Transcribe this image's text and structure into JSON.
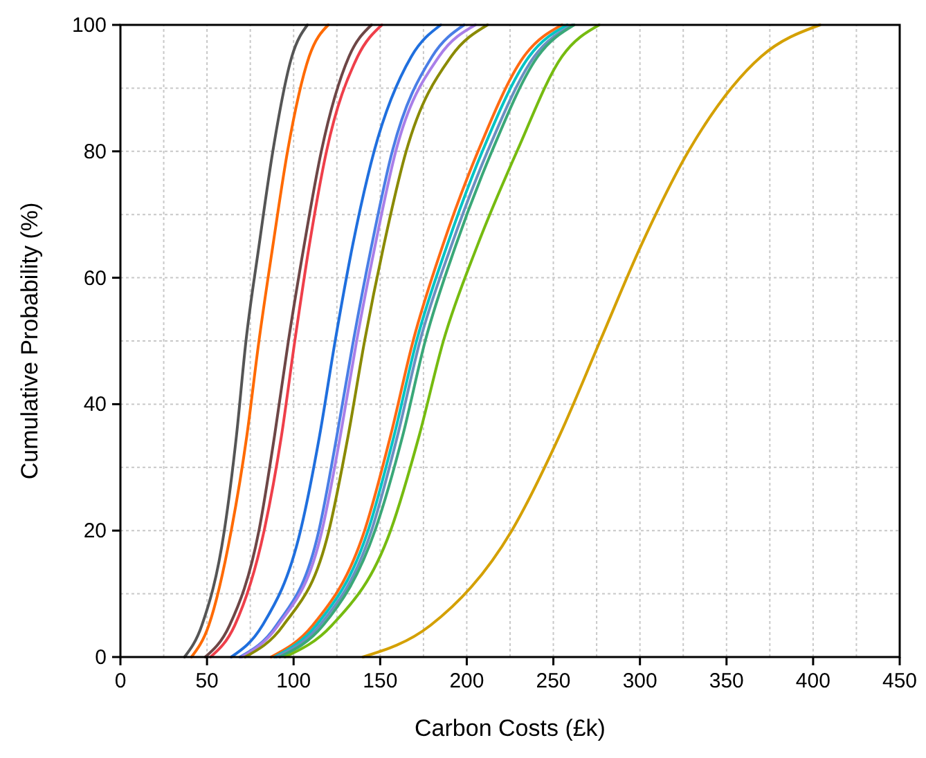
{
  "chart_data": {
    "type": "line",
    "xlabel": "Carbon Costs (£k)",
    "ylabel": "Cumulative Probability (%)",
    "xlim": [
      0,
      450
    ],
    "ylim": [
      0,
      100
    ],
    "xticks": [
      0,
      {
        "value": 25,
        "label": null
      },
      50,
      {
        "value": 75,
        "label": null
      },
      100,
      {
        "value": 125,
        "label": null
      },
      150,
      {
        "value": 175,
        "label": null
      },
      200,
      {
        "value": 225,
        "label": null
      },
      250,
      {
        "value": 275,
        "label": null
      },
      300,
      {
        "value": 325,
        "label": null
      },
      350,
      {
        "value": 375,
        "label": null
      },
      400,
      {
        "value": 425,
        "label": null
      },
      450
    ],
    "yticks": [
      0,
      {
        "value": 10,
        "label": null
      },
      20,
      {
        "value": 30,
        "label": null
      },
      40,
      {
        "value": 50,
        "label": null
      },
      60,
      {
        "value": 70,
        "label": null
      },
      80,
      {
        "value": 90,
        "label": null
      },
      100
    ],
    "grid": true,
    "marker": "none",
    "line_style": "solid",
    "series": [
      {
        "color": "#555555",
        "x": [
          37,
          47,
          60,
          67,
          72.5,
          80,
          88,
          99,
          108
        ],
        "values": [
          0,
          5,
          20,
          35,
          50,
          65,
          80,
          95,
          100
        ]
      },
      {
        "color": "#ff6a00",
        "x": [
          41,
          51,
          64,
          73,
          80,
          88,
          96.5,
          109,
          120
        ],
        "values": [
          0,
          5,
          20,
          35,
          50,
          65,
          80,
          95,
          100
        ]
      },
      {
        "color": "#6e4646",
        "x": [
          49,
          63,
          80,
          89,
          97,
          106,
          116,
          132,
          145
        ],
        "values": [
          0,
          5,
          20,
          35,
          50,
          65,
          80,
          95,
          100
        ]
      },
      {
        "color": "#ef3f4a",
        "x": [
          52,
          66,
          83,
          93,
          100.7,
          109,
          119,
          137,
          151
        ],
        "values": [
          0,
          5,
          20,
          35,
          50,
          65,
          80,
          95,
          100
        ]
      },
      {
        "color": "#1f6fde",
        "x": [
          64,
          82,
          104,
          115,
          124,
          134,
          146.5,
          168,
          185
        ],
        "values": [
          0,
          5,
          20,
          35,
          50,
          65,
          80,
          95,
          100
        ]
      },
      {
        "color": "#4a7ee6",
        "x": [
          69,
          90,
          114.6,
          125,
          134.5,
          145,
          157,
          180,
          198.5
        ],
        "values": [
          0,
          5,
          20,
          35,
          50,
          65,
          80,
          95,
          100
        ]
      },
      {
        "color": "#a97fe8",
        "x": [
          70,
          91,
          116.4,
          127,
          136.4,
          147,
          159,
          184,
          205
        ],
        "values": [
          0,
          5,
          20,
          35,
          50,
          65,
          80,
          95,
          100
        ]
      },
      {
        "color": "#8a8a00",
        "x": [
          72,
          94,
          120.4,
          131.5,
          141,
          152,
          165,
          191,
          212
        ],
        "values": [
          0,
          5,
          20,
          35,
          50,
          65,
          80,
          95,
          100
        ]
      },
      {
        "color": "#ff6a13",
        "x": [
          87,
          111,
          141,
          156,
          169,
          186,
          206.5,
          233,
          255
        ],
        "values": [
          0,
          5,
          20,
          35,
          50,
          65,
          80,
          95,
          100
        ]
      },
      {
        "color": "#00c4c4",
        "x": [
          89,
          113,
          143,
          158,
          171,
          188.5,
          209,
          236,
          258
        ],
        "values": [
          0,
          5,
          20,
          35,
          50,
          65,
          80,
          95,
          100
        ]
      },
      {
        "color": "#6b8fc0",
        "x": [
          90,
          115,
          145,
          160,
          173,
          191,
          212,
          239,
          261
        ],
        "values": [
          0,
          5,
          20,
          35,
          50,
          65,
          80,
          95,
          100
        ]
      },
      {
        "color": "#3aa878",
        "x": [
          92,
          117,
          147,
          163,
          176,
          193.5,
          214.5,
          241,
          262
        ],
        "values": [
          0,
          5,
          20,
          35,
          50,
          65,
          80,
          95,
          100
        ]
      },
      {
        "color": "#76bb10",
        "x": [
          95,
          122,
          156,
          172.5,
          186.5,
          206,
          229,
          255,
          276.5
        ],
        "values": [
          0,
          5,
          20,
          35,
          50,
          65,
          80,
          95,
          100
        ]
      },
      {
        "color": "#d4a000",
        "x": [
          140,
          179,
          226,
          253.5,
          277,
          300.5,
          328,
          370,
          404
        ],
        "values": [
          0,
          5,
          20,
          35,
          50,
          65,
          80,
          95,
          100
        ]
      }
    ]
  }
}
